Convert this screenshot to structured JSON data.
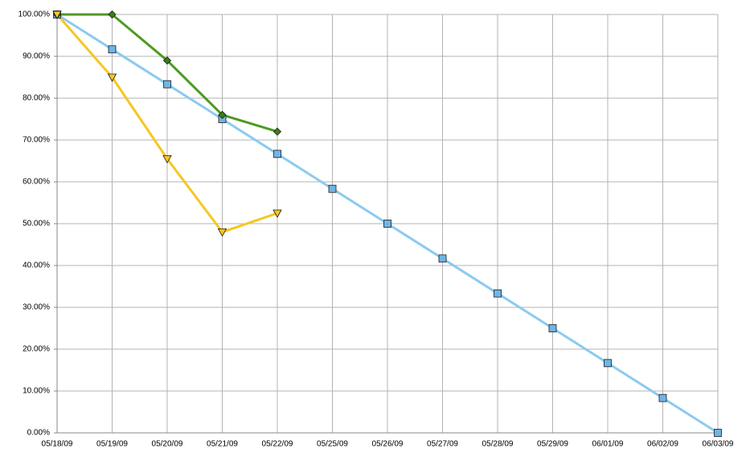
{
  "chart_data": {
    "type": "line",
    "categories": [
      "05/18/09",
      "05/19/09",
      "05/20/09",
      "05/21/09",
      "05/22/09",
      "05/25/09",
      "05/26/09",
      "05/27/09",
      "05/28/09",
      "05/29/09",
      "06/01/09",
      "06/02/09",
      "06/03/09"
    ],
    "series": [
      {
        "color": "#8ccbee",
        "marker": "square",
        "marker_color": "#6fb5e6",
        "values": [
          100,
          91.67,
          83.33,
          75,
          66.67,
          58.33,
          50,
          41.67,
          33.33,
          25,
          16.67,
          8.33,
          0
        ]
      },
      {
        "color": "#4f9a22",
        "marker": "diamond",
        "marker_color": "#3d7d17",
        "values": [
          100,
          100,
          89,
          76,
          72,
          null,
          null,
          null,
          null,
          null,
          null,
          null,
          null
        ]
      },
      {
        "color": "#f6c623",
        "marker": "triangle-down",
        "marker_color": "#f6c623",
        "values": [
          100,
          85,
          65.5,
          48,
          52.5,
          null,
          null,
          null,
          null,
          null,
          null,
          null,
          null
        ]
      }
    ],
    "ylim": [
      0,
      100
    ],
    "yticks": [
      {
        "value": 0,
        "label": "0.00%"
      },
      {
        "value": 10,
        "label": "10.00%"
      },
      {
        "value": 20,
        "label": "20.00%"
      },
      {
        "value": 30,
        "label": "30.00%"
      },
      {
        "value": 40,
        "label": "40.00%"
      },
      {
        "value": 50,
        "label": "50.00%"
      },
      {
        "value": 60,
        "label": "60.00%"
      },
      {
        "value": 70,
        "label": "70.00%"
      },
      {
        "value": 80,
        "label": "80.00%"
      },
      {
        "value": 90,
        "label": "90.00%"
      },
      {
        "value": 100,
        "label": "100.00%"
      }
    ],
    "grid": true
  }
}
